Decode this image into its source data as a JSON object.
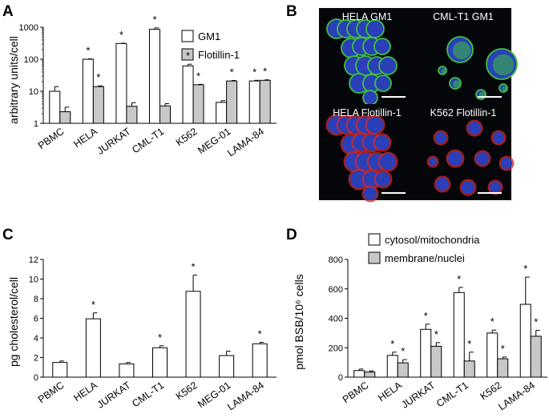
{
  "panels": {
    "A": "A",
    "B": "B",
    "C": "C",
    "D": "D"
  },
  "colors": {
    "series1": "#ffffff",
    "series2": "#c8c8c8",
    "nuclei": "#2a3fb8",
    "gm1": "#3ec03e",
    "flotillin": "#d22a2a"
  },
  "chart_data": [
    {
      "panel": "A",
      "type": "bar",
      "ylabel": "arbitrary units/cell",
      "yscale": "log",
      "ylim": [
        1,
        1000
      ],
      "yticks": [
        "1",
        "10",
        "100",
        "1000"
      ],
      "categories": [
        "PBMC",
        "HELA",
        "JURKAT",
        "CML-T1",
        "K562",
        "MEG-01",
        "LAMA-84"
      ],
      "legend_position": "top-right",
      "series": [
        {
          "name": "GM1",
          "values": [
            10,
            100,
            310,
            860,
            62,
            4.5,
            21
          ],
          "errors": [
            4,
            3,
            8,
            90,
            8,
            0.6,
            1
          ],
          "stars": [
            false,
            true,
            true,
            true,
            true,
            false,
            true
          ]
        },
        {
          "name": "Flotillin-1",
          "values": [
            2.3,
            14,
            3.4,
            3.5,
            16,
            21,
            22
          ],
          "errors": [
            0.9,
            0.8,
            1.0,
            0.6,
            0.5,
            0.8,
            0.8
          ],
          "stars": [
            false,
            true,
            false,
            false,
            true,
            true,
            true
          ]
        }
      ]
    },
    {
      "panel": "C",
      "type": "bar",
      "ylabel": "pg cholesterol/cell",
      "ylim": [
        0,
        12
      ],
      "yticks": [
        "0",
        "2",
        "4",
        "6",
        "8",
        "10",
        "12"
      ],
      "categories": [
        "PBMC",
        "HELA",
        "JURKAT",
        "CML-T1",
        "K562",
        "MEG-01",
        "LAMA-84"
      ],
      "series": [
        {
          "values": [
            1.5,
            5.95,
            1.35,
            3.0,
            8.75,
            2.2,
            3.4
          ],
          "errors": [
            0.15,
            0.6,
            0.15,
            0.2,
            1.65,
            0.45,
            0.15
          ],
          "stars": [
            false,
            true,
            false,
            true,
            true,
            false,
            true
          ]
        }
      ]
    },
    {
      "panel": "D",
      "type": "bar",
      "ylabel": "pmol  BSB/10⁶ cells",
      "ylim": [
        0,
        800
      ],
      "yticks": [
        "0",
        "200",
        "400",
        "600",
        "800"
      ],
      "categories": [
        "PBMC",
        "HELA",
        "JURKAT",
        "CML-T1",
        "K562",
        "LAMA-84"
      ],
      "legend_position": "top-right",
      "series": [
        {
          "name": "cytosol/mitochondria",
          "values": [
            45,
            148,
            325,
            575,
            300,
            495
          ],
          "errors": [
            10,
            22,
            35,
            35,
            20,
            185
          ],
          "stars": [
            false,
            true,
            true,
            true,
            true,
            true
          ]
        },
        {
          "name": "membrane/nuclei",
          "values": [
            35,
            97,
            210,
            110,
            125,
            278
          ],
          "errors": [
            8,
            22,
            25,
            60,
            12,
            40
          ],
          "stars": [
            false,
            true,
            true,
            true,
            true,
            true
          ]
        }
      ]
    }
  ],
  "micrographs": [
    {
      "label": "HELA  GM1",
      "stain": "gm1",
      "layout": "hela"
    },
    {
      "label": "CML-T1  GM1",
      "stain": "gm1",
      "layout": "cml"
    },
    {
      "label": "HELA Flotillin-1",
      "stain": "flotillin",
      "layout": "hela"
    },
    {
      "label": "K562 Flotillin-1",
      "stain": "flotillin",
      "layout": "k562"
    }
  ],
  "significance_mark": "*"
}
